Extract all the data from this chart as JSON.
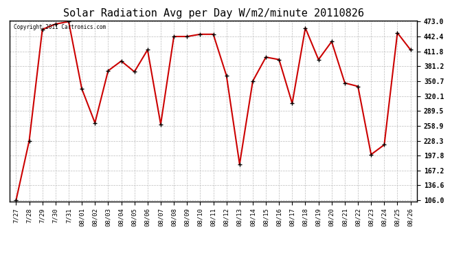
{
  "title": "Solar Radiation Avg per Day W/m2/minute 20110826",
  "copyright_text": "Copyright 2011 Cartronics.com",
  "x_labels": [
    "7/27",
    "7/28",
    "7/29",
    "7/30",
    "7/31",
    "08/01",
    "08/02",
    "08/03",
    "08/04",
    "08/05",
    "08/06",
    "08/07",
    "08/08",
    "08/09",
    "08/10",
    "08/11",
    "08/12",
    "08/13",
    "08/14",
    "08/15",
    "08/16",
    "08/17",
    "08/18",
    "08/19",
    "08/20",
    "08/21",
    "08/22",
    "08/23",
    "08/24",
    "08/25",
    "08/26"
  ],
  "y_values": [
    106.0,
    228.3,
    457.0,
    468.0,
    473.0,
    335.0,
    265.0,
    372.0,
    392.0,
    370.0,
    415.0,
    262.0,
    442.4,
    442.4,
    447.0,
    447.0,
    362.0,
    180.0,
    350.7,
    400.0,
    395.0,
    305.0,
    460.0,
    395.0,
    432.0,
    347.0,
    340.0,
    200.0,
    220.0,
    450.0,
    415.0
  ],
  "y_min": 106.0,
  "y_max": 473.0,
  "y_ticks": [
    106.0,
    136.6,
    167.2,
    197.8,
    228.3,
    258.9,
    289.5,
    320.1,
    350.7,
    381.2,
    411.8,
    442.4,
    473.0
  ],
  "line_color": "#cc0000",
  "marker_color": "#000000",
  "bg_color": "#ffffff",
  "grid_color": "#bbbbbb",
  "title_fontsize": 11
}
